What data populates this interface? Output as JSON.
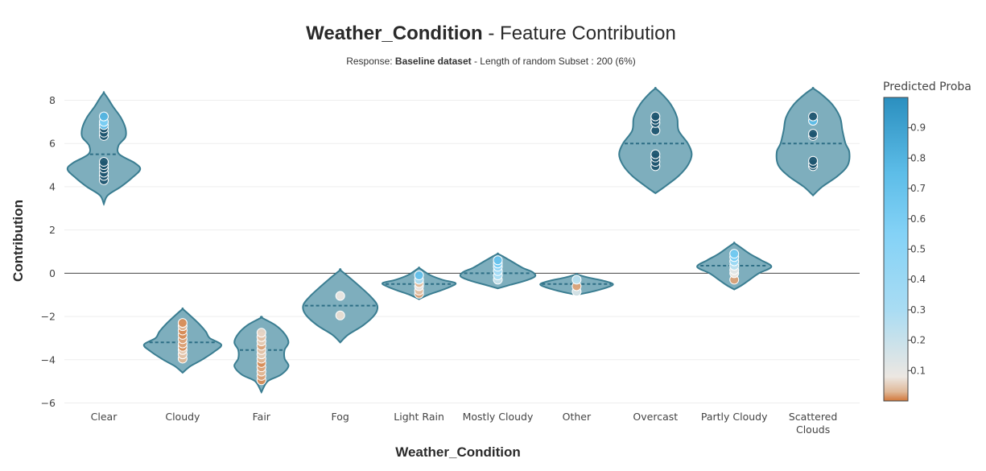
{
  "chart_data": {
    "type": "violin",
    "title_bold": "Weather_Condition",
    "title_rest": " - Feature Contribution",
    "subtitle_prefix": "Response: ",
    "subtitle_bold": "Baseline dataset",
    "subtitle_rest": " - Length of random Subset : 200 (6%)",
    "xlabel": "Weather_Condition",
    "ylabel": "Contribution",
    "ylim": [
      -6.2,
      8.6
    ],
    "yticks": [
      -6,
      -4,
      -2,
      0,
      2,
      4,
      6,
      8
    ],
    "ytick_labels": [
      "−6",
      "−4",
      "−2",
      "0",
      "2",
      "4",
      "6",
      "8"
    ],
    "colorbar": {
      "title": "Predicted Proba",
      "ticks": [
        0.1,
        0.2,
        0.3,
        0.4,
        0.5,
        0.6,
        0.7,
        0.8,
        0.9
      ],
      "tick_labels": [
        "0.1",
        "0.2",
        "0.3",
        "0.4",
        "0.5",
        "0.6",
        "0.7",
        "0.8",
        "0.9"
      ],
      "range": [
        0,
        1
      ]
    },
    "colors": {
      "violin_fill": "#7eaebd",
      "violin_line": "#3a7d91",
      "median_line": "#2d6e85",
      "zero_line": "#444444",
      "grid": "#eeeeee"
    },
    "categories": [
      {
        "label": [
          "Clear"
        ],
        "median": 5.5,
        "profile": [
          [
            3.2,
            0
          ],
          [
            3.6,
            0.05
          ],
          [
            4.0,
            0.22
          ],
          [
            4.4,
            0.36
          ],
          [
            4.8,
            0.47
          ],
          [
            5.1,
            0.4
          ],
          [
            5.5,
            0.2
          ],
          [
            5.9,
            0.19
          ],
          [
            6.3,
            0.28
          ],
          [
            6.7,
            0.28
          ],
          [
            7.2,
            0.22
          ],
          [
            7.7,
            0.12
          ],
          [
            8.1,
            0.05
          ],
          [
            8.35,
            0
          ]
        ],
        "points": [
          [
            4.3,
            0.95
          ],
          [
            4.5,
            0.93
          ],
          [
            4.65,
            0.95
          ],
          [
            4.85,
            0.86
          ],
          [
            5.0,
            0.92
          ],
          [
            5.15,
            0.95
          ],
          [
            6.35,
            0.9
          ],
          [
            6.5,
            0.93
          ],
          [
            6.7,
            0.94
          ],
          [
            6.85,
            0.7
          ],
          [
            7.0,
            0.6
          ],
          [
            7.25,
            0.78
          ]
        ]
      },
      {
        "label": [
          "Cloudy"
        ],
        "median": -3.2,
        "profile": [
          [
            -4.6,
            0
          ],
          [
            -4.3,
            0.1
          ],
          [
            -4.0,
            0.25
          ],
          [
            -3.6,
            0.42
          ],
          [
            -3.3,
            0.5
          ],
          [
            -3.0,
            0.35
          ],
          [
            -2.7,
            0.3
          ],
          [
            -2.3,
            0.2
          ],
          [
            -1.9,
            0.08
          ],
          [
            -1.65,
            0
          ]
        ],
        "points": [
          [
            -3.95,
            0.03
          ],
          [
            -3.75,
            0.04
          ],
          [
            -3.55,
            0.05
          ],
          [
            -3.4,
            0.01
          ],
          [
            -3.25,
            0.02
          ],
          [
            -3.05,
            0.02
          ],
          [
            -2.85,
            0.01
          ],
          [
            -2.65,
            0.01
          ],
          [
            -2.45,
            0.03
          ],
          [
            -2.3,
            0.01
          ]
        ]
      },
      {
        "label": [
          "Fair"
        ],
        "median": -3.55,
        "profile": [
          [
            -5.5,
            0
          ],
          [
            -5.0,
            0.08
          ],
          [
            -4.7,
            0.25
          ],
          [
            -4.3,
            0.35
          ],
          [
            -3.95,
            0.3
          ],
          [
            -3.55,
            0.3
          ],
          [
            -3.2,
            0.35
          ],
          [
            -2.8,
            0.3
          ],
          [
            -2.4,
            0.18
          ],
          [
            -2.05,
            0
          ]
        ],
        "points": [
          [
            -4.95,
            0.01
          ],
          [
            -4.75,
            0.02
          ],
          [
            -4.55,
            0.03
          ],
          [
            -4.35,
            0.02
          ],
          [
            -4.15,
            0.01
          ],
          [
            -3.95,
            0.03
          ],
          [
            -3.75,
            0.05
          ],
          [
            -3.55,
            0.04
          ],
          [
            -3.35,
            0.02
          ],
          [
            -3.15,
            0.05
          ],
          [
            -2.95,
            0.04
          ],
          [
            -2.75,
            0.06
          ]
        ]
      },
      {
        "label": [
          "Fog"
        ],
        "median": -1.5,
        "profile": [
          [
            -3.2,
            0
          ],
          [
            -2.85,
            0.1
          ],
          [
            -2.4,
            0.3
          ],
          [
            -1.9,
            0.45
          ],
          [
            -1.5,
            0.48
          ],
          [
            -1.1,
            0.4
          ],
          [
            -0.6,
            0.25
          ],
          [
            -0.2,
            0.12
          ],
          [
            0.15,
            0
          ]
        ],
        "points": [
          [
            -1.05,
            0.08
          ],
          [
            -1.95,
            0.07
          ]
        ]
      },
      {
        "label": [
          "Light Rain"
        ],
        "median": -0.5,
        "profile": [
          [
            -1.2,
            0
          ],
          [
            -1.0,
            0.12
          ],
          [
            -0.8,
            0.28
          ],
          [
            -0.6,
            0.42
          ],
          [
            -0.45,
            0.47
          ],
          [
            -0.3,
            0.3
          ],
          [
            -0.1,
            0.15
          ],
          [
            0.1,
            0.06
          ],
          [
            0.25,
            0
          ]
        ],
        "points": [
          [
            -0.95,
            0.02
          ],
          [
            -0.8,
            0.04
          ],
          [
            -0.6,
            0.1
          ],
          [
            -0.45,
            0.03
          ],
          [
            -0.3,
            0.3
          ],
          [
            -0.1,
            0.72
          ]
        ]
      },
      {
        "label": [
          "Mostly Cloudy"
        ],
        "median": 0.0,
        "profile": [
          [
            -0.7,
            0
          ],
          [
            -0.55,
            0.15
          ],
          [
            -0.35,
            0.35
          ],
          [
            -0.15,
            0.48
          ],
          [
            0.05,
            0.45
          ],
          [
            0.25,
            0.32
          ],
          [
            0.5,
            0.2
          ],
          [
            0.75,
            0.08
          ],
          [
            0.9,
            0
          ]
        ],
        "points": [
          [
            -0.3,
            0.2
          ],
          [
            -0.1,
            0.3
          ],
          [
            0.1,
            0.35
          ],
          [
            0.3,
            0.45
          ],
          [
            0.45,
            0.6
          ],
          [
            0.6,
            0.7
          ]
        ]
      },
      {
        "label": [
          "Other"
        ],
        "median": -0.5,
        "profile": [
          [
            -1.0,
            0
          ],
          [
            -0.85,
            0.2
          ],
          [
            -0.65,
            0.4
          ],
          [
            -0.5,
            0.47
          ],
          [
            -0.35,
            0.35
          ],
          [
            -0.2,
            0.15
          ],
          [
            -0.05,
            0
          ]
        ],
        "points": [
          [
            -0.85,
            0.15
          ],
          [
            -0.6,
            0.02
          ],
          [
            -0.3,
            0.25
          ]
        ]
      },
      {
        "label": [
          "Overcast"
        ],
        "median": 6.0,
        "profile": [
          [
            3.7,
            0
          ],
          [
            4.0,
            0.12
          ],
          [
            4.5,
            0.3
          ],
          [
            5.0,
            0.42
          ],
          [
            5.5,
            0.47
          ],
          [
            6.0,
            0.42
          ],
          [
            6.6,
            0.3
          ],
          [
            7.2,
            0.28
          ],
          [
            7.8,
            0.2
          ],
          [
            8.3,
            0.08
          ],
          [
            8.55,
            0
          ]
        ],
        "points": [
          [
            4.95,
            0.95
          ],
          [
            5.15,
            0.92
          ],
          [
            5.35,
            0.95
          ],
          [
            5.5,
            0.9
          ],
          [
            6.6,
            0.94
          ],
          [
            6.95,
            0.93
          ],
          [
            7.1,
            0.95
          ],
          [
            7.25,
            0.9
          ]
        ]
      },
      {
        "label": [
          "Partly Cloudy"
        ],
        "median": 0.35,
        "profile": [
          [
            -0.75,
            0
          ],
          [
            -0.55,
            0.1
          ],
          [
            -0.3,
            0.2
          ],
          [
            0.0,
            0.32
          ],
          [
            0.3,
            0.48
          ],
          [
            0.6,
            0.35
          ],
          [
            0.9,
            0.2
          ],
          [
            1.2,
            0.08
          ],
          [
            1.4,
            0
          ]
        ],
        "points": [
          [
            -0.3,
            0.02
          ],
          [
            0.0,
            0.08
          ],
          [
            0.15,
            0.12
          ],
          [
            0.35,
            0.25
          ],
          [
            0.55,
            0.4
          ],
          [
            0.75,
            0.6
          ],
          [
            0.9,
            0.65
          ]
        ]
      },
      {
        "label": [
          "Scattered",
          "Clouds"
        ],
        "median": 6.0,
        "profile": [
          [
            3.6,
            0
          ],
          [
            4.0,
            0.12
          ],
          [
            4.5,
            0.32
          ],
          [
            5.0,
            0.45
          ],
          [
            5.6,
            0.47
          ],
          [
            6.0,
            0.42
          ],
          [
            6.6,
            0.38
          ],
          [
            7.2,
            0.35
          ],
          [
            7.8,
            0.25
          ],
          [
            8.3,
            0.1
          ],
          [
            8.55,
            0
          ]
        ],
        "points": [
          [
            4.95,
            0.88
          ],
          [
            5.05,
            0.9
          ],
          [
            5.2,
            0.95
          ],
          [
            6.35,
            0.94
          ],
          [
            6.45,
            0.95
          ],
          [
            7.05,
            0.75
          ],
          [
            7.25,
            0.92
          ]
        ]
      }
    ]
  }
}
